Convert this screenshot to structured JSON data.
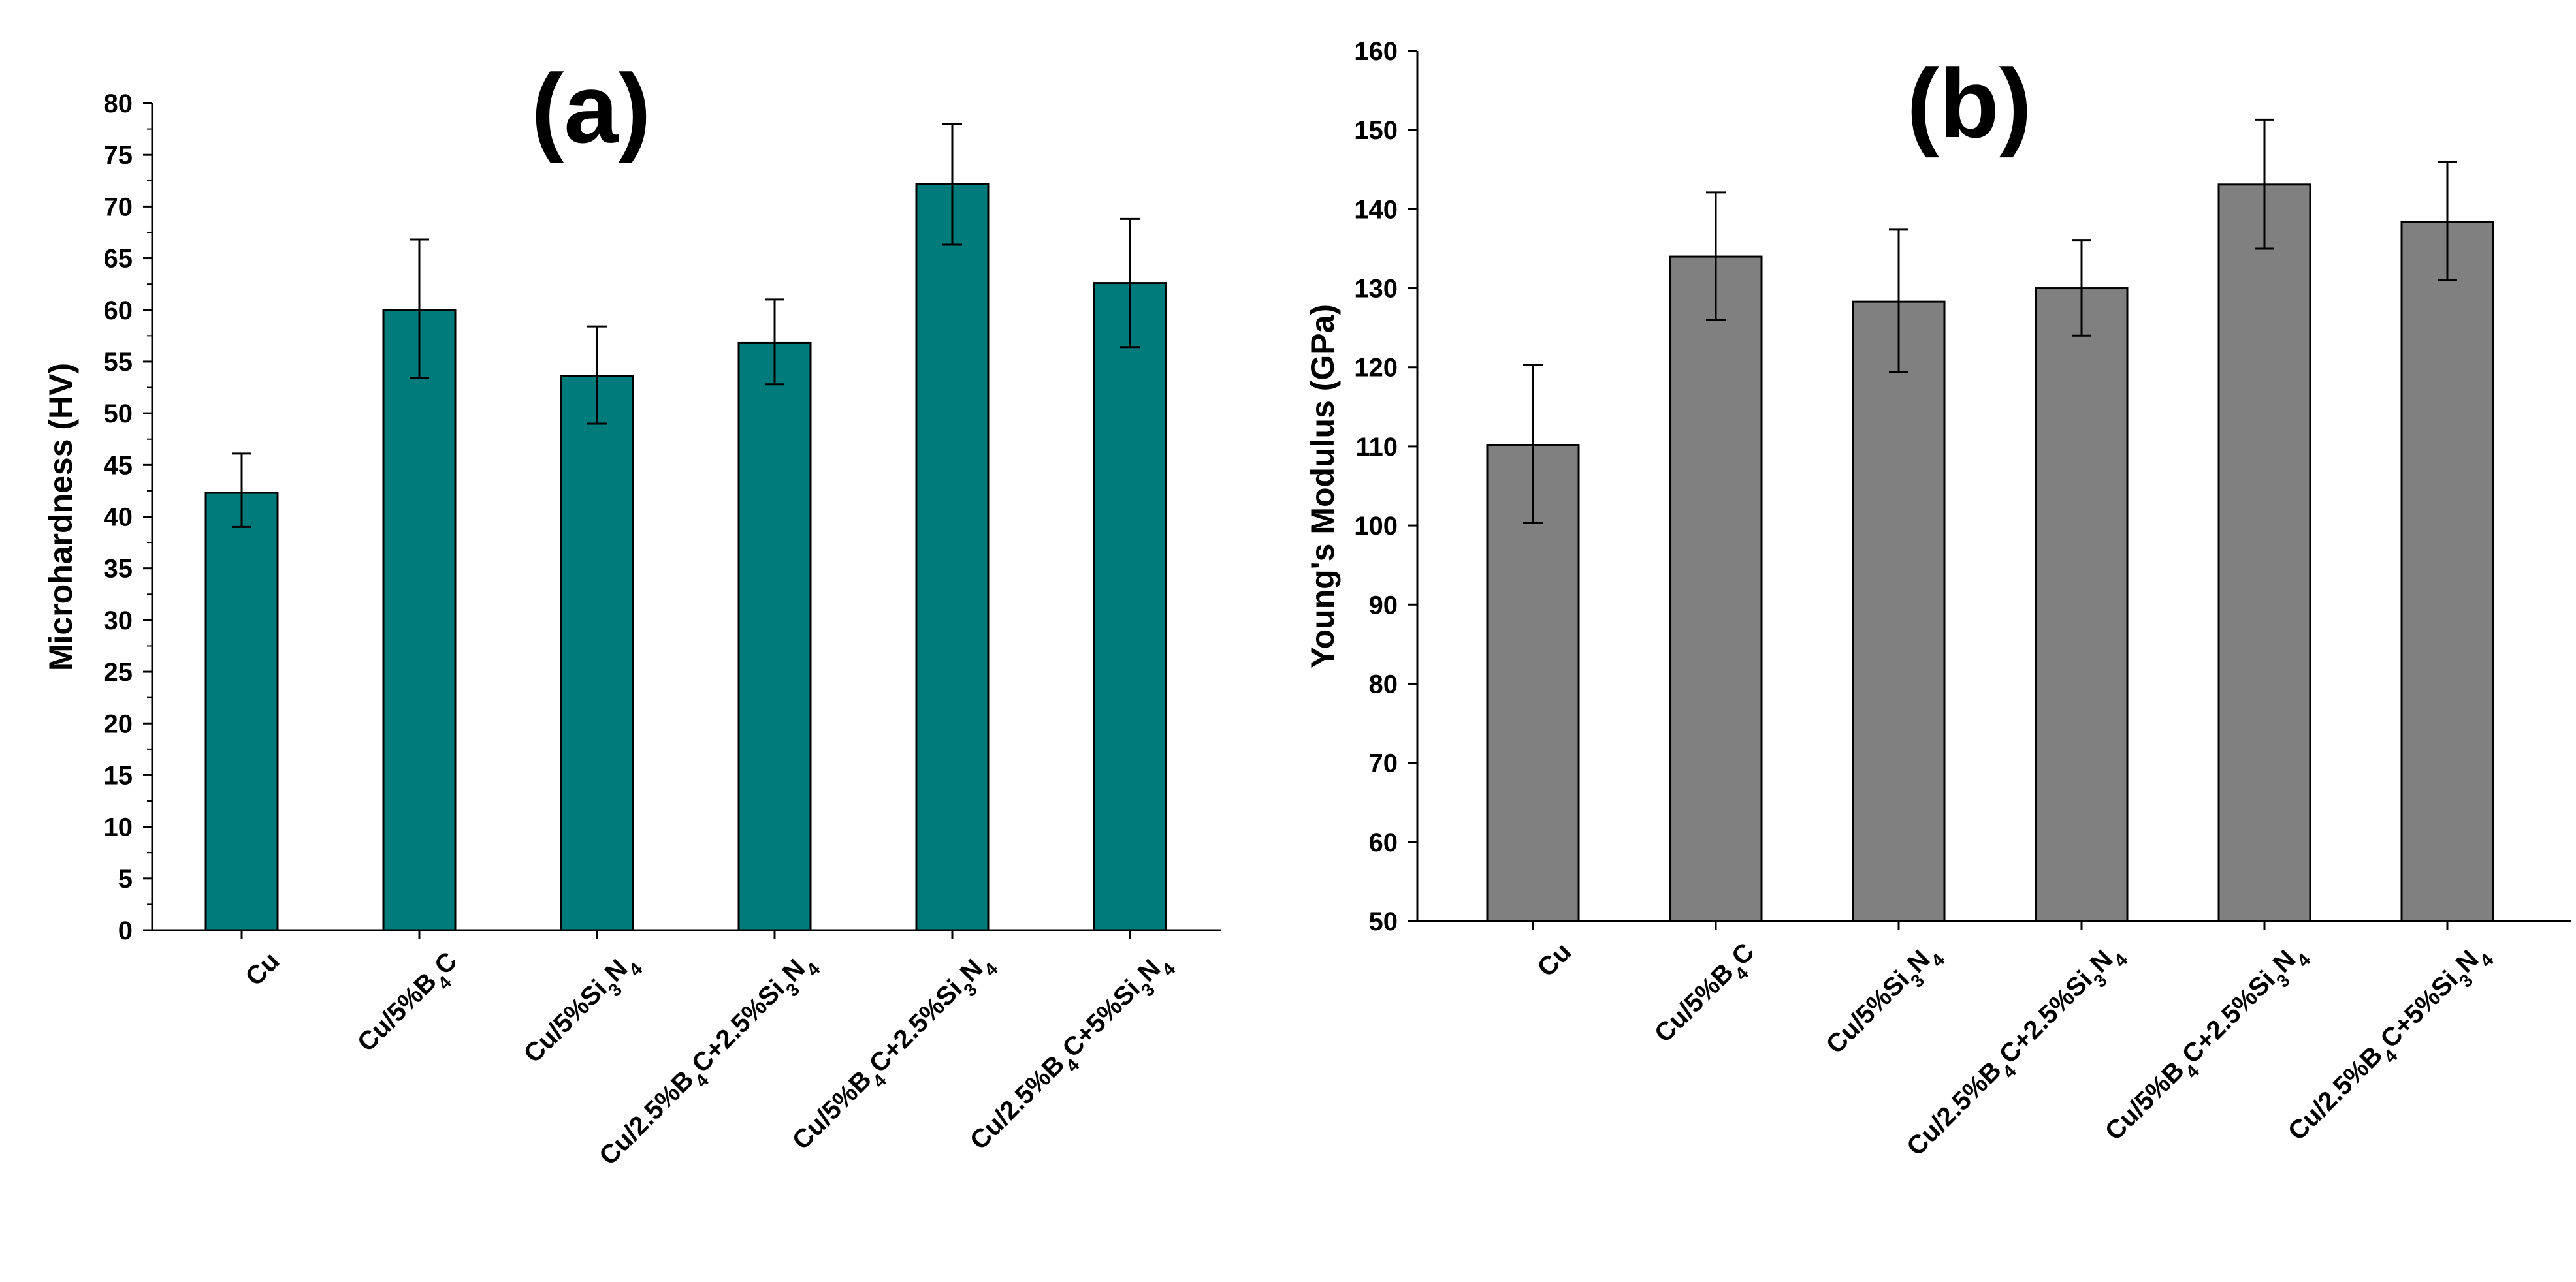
{
  "chart_data": [
    {
      "type": "bar",
      "title": "(a)",
      "xlabel": "",
      "ylabel": "Microhardness (HV)",
      "ylim": [
        0,
        80
      ],
      "ytick_step": 5,
      "bar_color": "#007B7B",
      "categories": [
        {
          "base": "Cu",
          "parts": [
            {
              "t": "Cu"
            }
          ]
        },
        {
          "base": "Cu/5%B4C",
          "parts": [
            {
              "t": "Cu/5%B"
            },
            {
              "t": "4",
              "sub": true
            },
            {
              "t": "C"
            }
          ]
        },
        {
          "base": "Cu/5%Si3N4",
          "parts": [
            {
              "t": "Cu/5%Si"
            },
            {
              "t": "3",
              "sub": true
            },
            {
              "t": "N"
            },
            {
              "t": "4",
              "sub": true
            }
          ]
        },
        {
          "base": "Cu/2.5%B4C+2.5%Si3N4",
          "parts": [
            {
              "t": "Cu/2.5%B"
            },
            {
              "t": "4",
              "sub": true
            },
            {
              "t": "C+2.5%Si"
            },
            {
              "t": "3",
              "sub": true
            },
            {
              "t": "N"
            },
            {
              "t": "4",
              "sub": true
            }
          ]
        },
        {
          "base": "Cu/5%B4C+2.5%Si3N4",
          "parts": [
            {
              "t": "Cu/5%B"
            },
            {
              "t": "4",
              "sub": true
            },
            {
              "t": "C+2.5%Si"
            },
            {
              "t": "3",
              "sub": true
            },
            {
              "t": "N"
            },
            {
              "t": "4",
              "sub": true
            }
          ]
        },
        {
          "base": "Cu/2.5%B4C+5%Si3N4",
          "parts": [
            {
              "t": "Cu/2.5%B"
            },
            {
              "t": "4",
              "sub": true
            },
            {
              "t": "C+5%Si"
            },
            {
              "t": "3",
              "sub": true
            },
            {
              "t": "N"
            },
            {
              "t": "4",
              "sub": true
            }
          ]
        }
      ],
      "values": [
        42.3,
        60.0,
        53.6,
        56.8,
        72.2,
        62.6
      ],
      "error_low": [
        39.0,
        53.4,
        49.0,
        52.8,
        66.3,
        56.4
      ],
      "error_high": [
        46.1,
        66.8,
        58.4,
        61.0,
        78.0,
        68.8
      ]
    },
    {
      "type": "bar",
      "title": "(b)",
      "xlabel": "",
      "ylabel": "Young's Modulus (GPa)",
      "ylim": [
        50,
        160
      ],
      "ytick_step": 10,
      "bar_color": "#808080",
      "categories": [
        {
          "base": "Cu",
          "parts": [
            {
              "t": "Cu"
            }
          ]
        },
        {
          "base": "Cu/5%B4C",
          "parts": [
            {
              "t": "Cu/5%B"
            },
            {
              "t": "4",
              "sub": true
            },
            {
              "t": "C"
            }
          ]
        },
        {
          "base": "Cu/5%Si3N4",
          "parts": [
            {
              "t": "Cu/5%Si"
            },
            {
              "t": "3",
              "sub": true
            },
            {
              "t": "N"
            },
            {
              "t": "4",
              "sub": true
            }
          ]
        },
        {
          "base": "Cu/2.5%B4C+2.5%Si3N4",
          "parts": [
            {
              "t": "Cu/2.5%B"
            },
            {
              "t": "4",
              "sub": true
            },
            {
              "t": "C+2.5%Si"
            },
            {
              "t": "3",
              "sub": true
            },
            {
              "t": "N"
            },
            {
              "t": "4",
              "sub": true
            }
          ]
        },
        {
          "base": "Cu/5%B4C+2.5%Si3N4",
          "parts": [
            {
              "t": "Cu/5%B"
            },
            {
              "t": "4",
              "sub": true
            },
            {
              "t": "C+2.5%Si"
            },
            {
              "t": "3",
              "sub": true
            },
            {
              "t": "N"
            },
            {
              "t": "4",
              "sub": true
            }
          ]
        },
        {
          "base": "Cu/2.5%B4C+5%Si3N4",
          "parts": [
            {
              "t": "Cu/2.5%B"
            },
            {
              "t": "4",
              "sub": true
            },
            {
              "t": "C+5%Si"
            },
            {
              "t": "3",
              "sub": true
            },
            {
              "t": "N"
            },
            {
              "t": "4",
              "sub": true
            }
          ]
        }
      ],
      "values": [
        110.2,
        134.0,
        128.3,
        130.0,
        143.1,
        138.4
      ],
      "error_low": [
        100.3,
        126.0,
        119.4,
        124.0,
        135.0,
        131.0
      ],
      "error_high": [
        120.3,
        142.1,
        137.4,
        136.1,
        151.3,
        146.0
      ]
    }
  ]
}
